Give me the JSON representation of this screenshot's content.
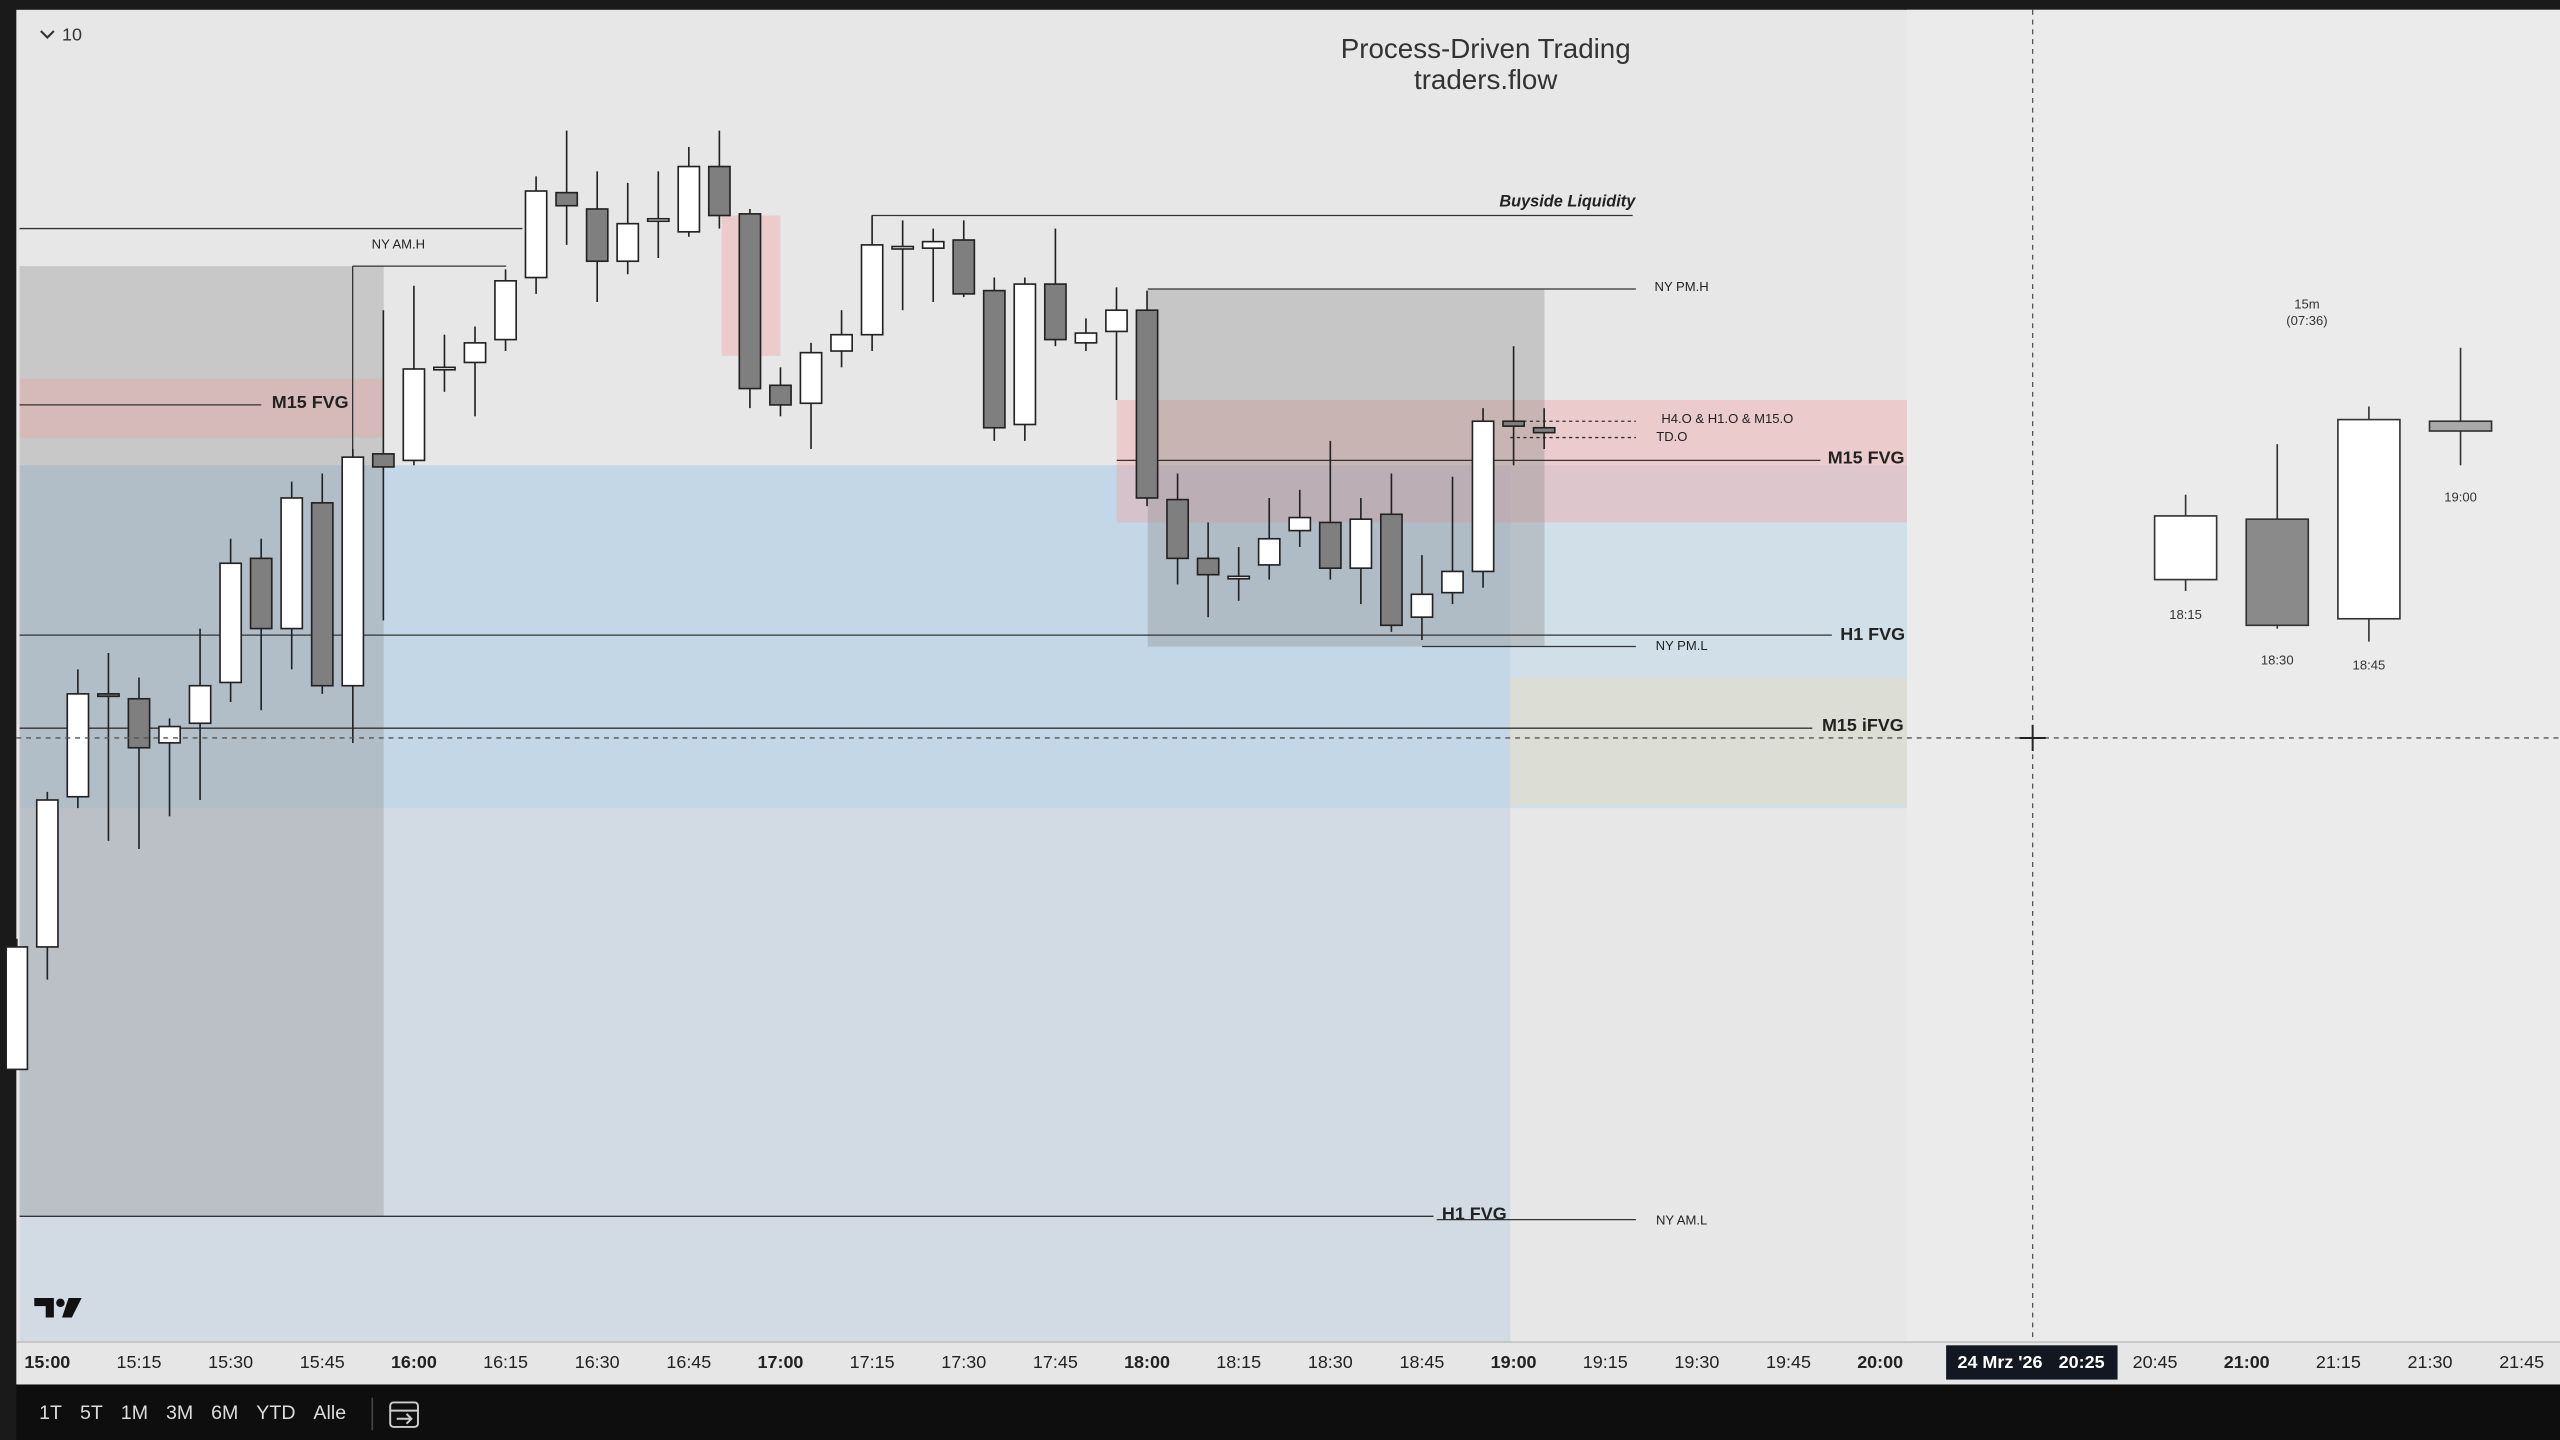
{
  "ui": {
    "scale_label": "10",
    "timeframes": [
      "1T",
      "5T",
      "1M",
      "3M",
      "6M",
      "YTD",
      "Alle"
    ]
  },
  "chart_data": {
    "type": "candlestick",
    "title": "Process-Driven Trading",
    "subtitle": "traders.flow",
    "up_color": "#ffffff",
    "down_color": "#7f7f7f",
    "ylim": [
      0,
      820
    ],
    "x": [
      "14:55",
      "15:00",
      "15:05",
      "15:10",
      "15:15",
      "15:20",
      "15:25",
      "15:30",
      "15:35",
      "15:40",
      "15:45",
      "15:50",
      "15:55",
      "16:00",
      "16:05",
      "16:10",
      "16:15",
      "16:20",
      "16:25",
      "16:30",
      "16:35",
      "16:40",
      "16:45",
      "16:50",
      "16:55",
      "17:00",
      "17:05",
      "17:10",
      "17:15",
      "17:20",
      "17:25",
      "17:30",
      "17:35",
      "17:40",
      "17:45",
      "17:50",
      "17:55",
      "18:00",
      "18:05",
      "18:10",
      "18:15",
      "18:20",
      "18:25",
      "18:30",
      "18:35",
      "18:40",
      "18:45",
      "18:50",
      "18:55",
      "19:00",
      "19:05"
    ],
    "open": [
      165,
      240,
      332,
      395,
      392,
      365,
      377,
      402,
      478,
      435,
      512,
      400,
      542,
      538,
      595,
      598,
      612,
      650,
      702,
      692,
      660,
      686,
      678,
      718,
      689,
      584,
      573,
      605,
      615,
      669,
      668,
      673,
      642,
      560,
      646,
      610,
      617,
      630,
      514,
      478,
      467,
      474,
      495,
      500,
      472,
      505,
      442,
      457,
      470,
      562,
      558
    ],
    "high": [
      245,
      335,
      410,
      420,
      405,
      380,
      435,
      490,
      490,
      525,
      530,
      545,
      630,
      645,
      615,
      620,
      655,
      712,
      740,
      715,
      708,
      715,
      730,
      740,
      692,
      595,
      610,
      630,
      688,
      685,
      680,
      685,
      650,
      650,
      680,
      625,
      644,
      642,
      530,
      500,
      485,
      515,
      520,
      550,
      515,
      530,
      480,
      528,
      570,
      608,
      570
    ],
    "low": [
      165,
      220,
      325,
      305,
      300,
      320,
      330,
      390,
      385,
      410,
      395,
      365,
      440,
      535,
      580,
      565,
      605,
      640,
      670,
      635,
      652,
      662,
      675,
      680,
      570,
      565,
      545,
      595,
      605,
      630,
      635,
      638,
      550,
      550,
      608,
      605,
      575,
      510,
      462,
      442,
      452,
      465,
      485,
      465,
      450,
      433,
      428,
      450,
      460,
      535,
      545
    ],
    "close": [
      240,
      330,
      395,
      394,
      362,
      375,
      400,
      475,
      435,
      515,
      400,
      540,
      534,
      594,
      595,
      610,
      648,
      703,
      694,
      660,
      683,
      686,
      718,
      688,
      582,
      572,
      604,
      615,
      670,
      669,
      672,
      640,
      558,
      646,
      612,
      616,
      630,
      515,
      478,
      468,
      467,
      490,
      503,
      472,
      502,
      437,
      456,
      470,
      562,
      559,
      555
    ],
    "xticks": [
      "15:00",
      "15:15",
      "15:30",
      "15:45",
      "16:00",
      "16:15",
      "16:30",
      "16:45",
      "17:00",
      "17:15",
      "17:30",
      "17:45",
      "18:00",
      "18:15",
      "18:30",
      "18:45",
      "19:00",
      "19:15",
      "19:30",
      "19:45",
      "20:00",
      "20:45",
      "21:00",
      "21:15",
      "21:30",
      "21:45"
    ],
    "crosshair": {
      "date": "24 Mrz '26",
      "time": "20:25"
    },
    "annotations": [
      "NY AM.H",
      "M15 FVG",
      "Buyside Liquidity",
      "NY PM.H",
      "H4.O & H1.O & M15.O",
      "TD.O",
      "M15 FVG",
      "H1 FVG",
      "NY PM.L",
      "M15 iFVG",
      "H1 FVG",
      "NY AM.L"
    ],
    "htf": {
      "title": "15m",
      "subtitle": "(07:36)",
      "x": [
        "18:15",
        "18:30",
        "18:45",
        "19:00"
      ],
      "open": [
        465,
        502,
        441,
        562
      ],
      "high": [
        517,
        548,
        571,
        607
      ],
      "low": [
        458,
        435,
        427,
        535
      ],
      "close": [
        504,
        437,
        563,
        556
      ],
      "colors": [
        "#ffffff",
        "#8a8a8a",
        "#ffffff",
        "#a9a9a9"
      ]
    }
  }
}
